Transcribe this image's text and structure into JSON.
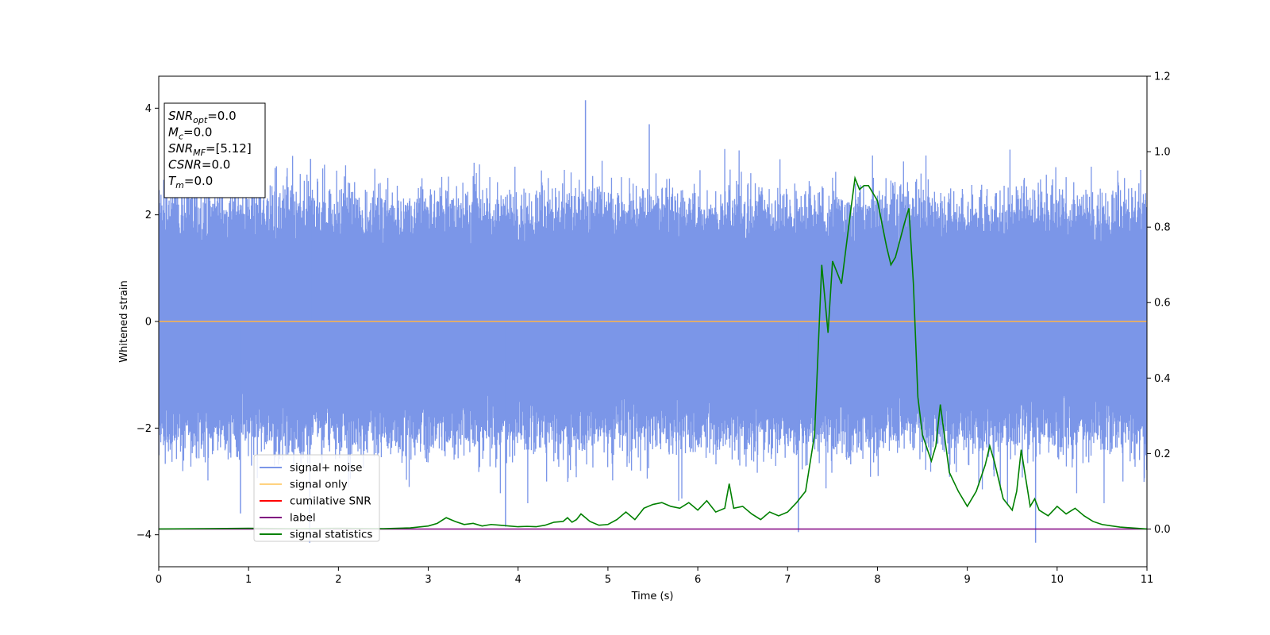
{
  "chart_data": {
    "type": "line",
    "xlabel": "Time (s)",
    "ylabel": "Whitened strain",
    "xlim": [
      0,
      11
    ],
    "ylim": [
      -4.6,
      4.6
    ],
    "y2lim": [
      -0.1,
      1.2
    ],
    "xticks": [
      "0",
      "1",
      "2",
      "3",
      "4",
      "5",
      "6",
      "7",
      "8",
      "9",
      "10",
      "11"
    ],
    "yticks": [
      "−4",
      "−2",
      "0",
      "2",
      "4"
    ],
    "y2ticks": [
      "0.0",
      "0.2",
      "0.4",
      "0.6",
      "0.8",
      "1.0",
      "1.2"
    ],
    "grid": false,
    "legend_position": "lower-left",
    "legend": [
      {
        "name": "signal+ noise",
        "color": "#7b96e8"
      },
      {
        "name": "signal only",
        "color": "#ffd27f"
      },
      {
        "name": "cumilative SNR",
        "color": "#ff0000"
      },
      {
        "name": "label",
        "color": "#800080"
      },
      {
        "name": "signal statistics",
        "color": "#008000"
      }
    ],
    "info_box": [
      {
        "base": "SNR",
        "sub": "opt",
        "value": "=0.0"
      },
      {
        "base": "M",
        "sub": "c",
        "value": "=0.0"
      },
      {
        "base": "SNR",
        "sub": "MF",
        "value": "=[5.12]"
      },
      {
        "base": "CSNR",
        "sub": "",
        "value": "=0.0"
      },
      {
        "base": "T",
        "sub": "m",
        "value": "=0.0"
      }
    ],
    "noise": {
      "name": "signal+ noise",
      "axis": "left",
      "color": "#7b96e8",
      "band": [
        -2.0,
        2.0
      ],
      "outliers": [
        [
          4.75,
          4.15
        ],
        [
          5.46,
          3.7
        ],
        [
          1.68,
          -4.15
        ],
        [
          3.86,
          -3.85
        ],
        [
          7.12,
          -3.95
        ],
        [
          9.76,
          -4.15
        ],
        [
          1.69,
          3.05
        ],
        [
          0.91,
          -3.6
        ]
      ]
    },
    "series": [
      {
        "name": "signal only",
        "axis": "left",
        "color": "#ffb347",
        "x": [
          0,
          11
        ],
        "y": [
          0,
          0
        ]
      },
      {
        "name": "label",
        "axis": "right",
        "color": "#800080",
        "x": [
          0,
          11
        ],
        "y": [
          0,
          0
        ]
      },
      {
        "name": "signal statistics",
        "axis": "right",
        "color": "#008000",
        "x": [
          0,
          0.5,
          1.0,
          1.5,
          2.0,
          2.5,
          2.8,
          3.0,
          3.1,
          3.2,
          3.3,
          3.4,
          3.5,
          3.6,
          3.7,
          3.8,
          3.9,
          4.0,
          4.1,
          4.2,
          4.3,
          4.4,
          4.5,
          4.55,
          4.6,
          4.65,
          4.7,
          4.8,
          4.9,
          5.0,
          5.1,
          5.2,
          5.3,
          5.35,
          5.4,
          5.5,
          5.6,
          5.7,
          5.8,
          5.9,
          6.0,
          6.1,
          6.2,
          6.3,
          6.35,
          6.4,
          6.5,
          6.6,
          6.7,
          6.8,
          6.9,
          7.0,
          7.1,
          7.2,
          7.3,
          7.38,
          7.45,
          7.5,
          7.6,
          7.7,
          7.75,
          7.8,
          7.85,
          7.9,
          8.0,
          8.1,
          8.15,
          8.2,
          8.3,
          8.35,
          8.4,
          8.45,
          8.5,
          8.6,
          8.65,
          8.7,
          8.8,
          8.9,
          9.0,
          9.1,
          9.2,
          9.25,
          9.3,
          9.4,
          9.5,
          9.55,
          9.6,
          9.7,
          9.75,
          9.8,
          9.9,
          10.0,
          10.1,
          10.2,
          10.3,
          10.4,
          10.5,
          10.7,
          11.0
        ],
        "y": [
          0.0,
          0.001,
          0.002,
          0.001,
          0.002,
          0.001,
          0.003,
          0.008,
          0.015,
          0.03,
          0.02,
          0.012,
          0.015,
          0.008,
          0.012,
          0.01,
          0.008,
          0.006,
          0.007,
          0.006,
          0.01,
          0.018,
          0.02,
          0.03,
          0.018,
          0.025,
          0.04,
          0.02,
          0.01,
          0.012,
          0.025,
          0.045,
          0.025,
          0.04,
          0.055,
          0.065,
          0.07,
          0.06,
          0.055,
          0.07,
          0.05,
          0.075,
          0.045,
          0.055,
          0.12,
          0.055,
          0.06,
          0.04,
          0.025,
          0.045,
          0.035,
          0.045,
          0.07,
          0.1,
          0.25,
          0.7,
          0.52,
          0.71,
          0.65,
          0.84,
          0.93,
          0.9,
          0.91,
          0.91,
          0.87,
          0.75,
          0.7,
          0.72,
          0.81,
          0.85,
          0.65,
          0.35,
          0.25,
          0.18,
          0.22,
          0.33,
          0.15,
          0.1,
          0.06,
          0.1,
          0.17,
          0.22,
          0.18,
          0.08,
          0.05,
          0.1,
          0.21,
          0.06,
          0.08,
          0.05,
          0.035,
          0.06,
          0.04,
          0.055,
          0.035,
          0.02,
          0.012,
          0.005,
          0.0
        ]
      }
    ]
  }
}
